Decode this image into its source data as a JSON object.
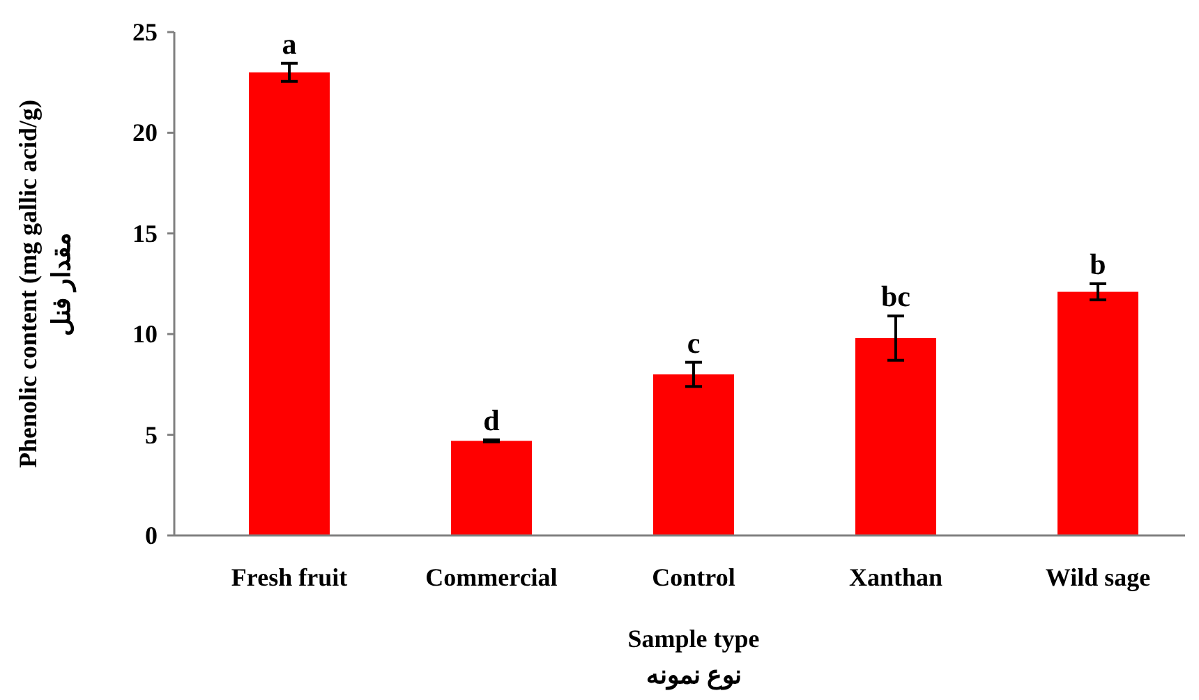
{
  "chart_data": {
    "type": "bar",
    "xlabel": "Sample type\nنوع نمونه",
    "ylabel": "Phenolic content (mg gallic acid/g)\nمقدار فنل",
    "categories": [
      "Fresh fruit",
      "Commercial",
      "Control",
      "Xanthan",
      "Wild sage"
    ],
    "values": [
      23.0,
      4.7,
      8.0,
      9.8,
      12.1
    ],
    "errors": [
      0.45,
      0.05,
      0.6,
      1.1,
      0.4
    ],
    "color": "#ff0000",
    "ylim": [
      0,
      25
    ],
    "yticks": [
      0,
      5,
      10,
      15,
      20,
      25
    ],
    "annotations": [
      {
        "text": "a",
        "x": "Fresh fruit",
        "y": 23.45
      },
      {
        "text": "d",
        "x": "Commercial",
        "y": 4.75
      },
      {
        "text": "c",
        "x": "Control",
        "y": 8.6
      },
      {
        "text": "bc",
        "x": "Xanthan",
        "y": 10.9
      },
      {
        "text": "b",
        "x": "Wild sage",
        "y": 12.5
      }
    ]
  }
}
